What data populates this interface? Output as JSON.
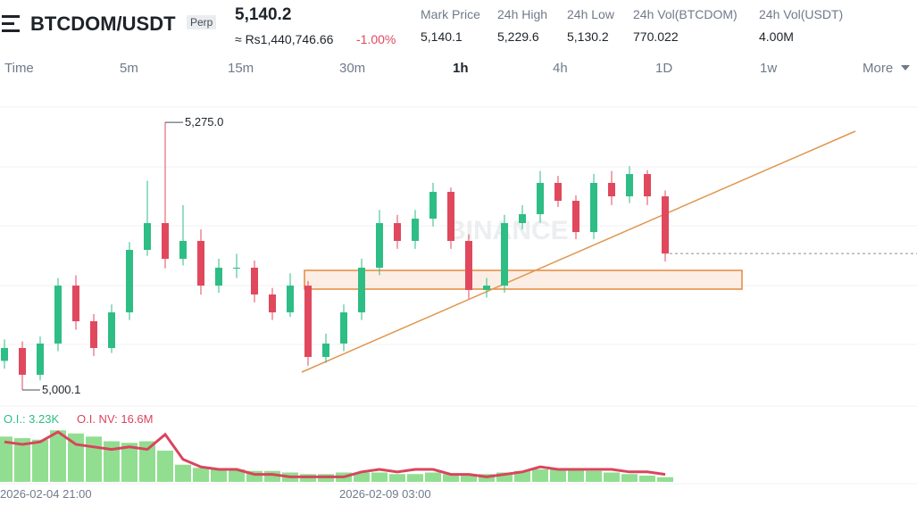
{
  "header": {
    "symbol": "BTCDOM/USDT",
    "contract": "Perp",
    "last_price": "5,140.2",
    "fiat_price": "≈ Rs1,440,746.66",
    "change": "-1.00%",
    "stats": [
      {
        "label": "Mark Price",
        "value": "5,140.1"
      },
      {
        "label": "24h High",
        "value": "5,229.6"
      },
      {
        "label": "24h Low",
        "value": "5,130.2"
      },
      {
        "label": "24h Vol(BTCDOM)",
        "value": "770.022"
      },
      {
        "label": "24h Vol(USDT)",
        "value": "4.00M"
      }
    ]
  },
  "intervals": [
    "Time",
    "5m",
    "15m",
    "30m",
    "1h",
    "4h",
    "1D",
    "1w",
    "More"
  ],
  "active_interval": 4,
  "chart_data": {
    "type": "candlestick",
    "watermark": "BINANCE",
    "colors": {
      "up": "#2ebd85",
      "down": "#e0485e"
    },
    "ylim": [
      4983.6,
      5313.6
    ],
    "open": [
      5030.0,
      5043.2,
      5015.7,
      5047.8,
      5107.3,
      5070.7,
      5043.2,
      5079.8,
      5144.0,
      5171.5,
      5134.8,
      5153.2,
      5107.3,
      5125.7,
      5125.7,
      5098.2,
      5079.8,
      5107.3,
      5034.0,
      5047.8,
      5079.8,
      5125.7,
      5171.5,
      5153.2,
      5176.1,
      5203.6,
      5153.2,
      5102.8,
      5107.3,
      5171.5,
      5180.7,
      5212.8,
      5194.4,
      5162.3,
      5212.8,
      5199.0,
      5221.9,
      5199.0
    ],
    "high": [
      5052.0,
      5050.0,
      5055.0,
      5115.0,
      5118.0,
      5078.0,
      5088.0,
      5152.0,
      5215.0,
      5275.0,
      5190.0,
      5165.0,
      5135.0,
      5140.0,
      5133.0,
      5105.0,
      5120.0,
      5112.0,
      5058.0,
      5088.0,
      5135.0,
      5185.0,
      5180.0,
      5185.0,
      5213.0,
      5208.0,
      5160.0,
      5115.0,
      5180.0,
      5190.0,
      5225.0,
      5220.0,
      5200.0,
      5222.0,
      5225.0,
      5230.0,
      5226.0,
      5205.0
    ],
    "low": [
      5022.0,
      5000.1,
      5010.0,
      5040.0,
      5062.0,
      5035.0,
      5038.0,
      5072.0,
      5138.0,
      5125.0,
      5128.0,
      5098.0,
      5100.0,
      5115.0,
      5090.0,
      5072.0,
      5075.0,
      5025.0,
      5028.0,
      5040.0,
      5072.0,
      5118.0,
      5145.0,
      5145.0,
      5168.0,
      5145.0,
      5094.0,
      5095.0,
      5100.0,
      5165.0,
      5172.0,
      5188.0,
      5155.0,
      5155.0,
      5190.0,
      5192.0,
      5190.0,
      5132.0
    ],
    "close": [
      5043.2,
      5015.7,
      5047.8,
      5107.3,
      5070.7,
      5043.2,
      5079.8,
      5144.0,
      5171.5,
      5134.8,
      5153.2,
      5107.3,
      5125.7,
      5125.7,
      5098.2,
      5079.8,
      5107.3,
      5034.0,
      5047.8,
      5079.8,
      5125.7,
      5171.5,
      5153.2,
      5176.1,
      5203.6,
      5153.2,
      5102.8,
      5107.3,
      5171.5,
      5180.7,
      5212.8,
      5194.4,
      5162.3,
      5212.8,
      5199.0,
      5221.9,
      5199.0,
      5140.2
    ],
    "high_marker": {
      "index": 9,
      "value": 5275.0,
      "label": "5,275.0"
    },
    "low_marker": {
      "index": 1,
      "value": 5000.1,
      "label": "5,000.1"
    },
    "x_labels": [
      {
        "index": 0,
        "label": "2026-02-04 21:00"
      },
      {
        "index": 19,
        "label": "2026-02-09 03:00"
      }
    ],
    "open_interest": {
      "name": "O.I.: 3.23K",
      "color": "#7ed87e",
      "ylim": [
        3.2,
        3.6
      ],
      "values": [
        3.49,
        3.48,
        3.47,
        3.53,
        3.51,
        3.49,
        3.46,
        3.45,
        3.46,
        3.4,
        3.31,
        3.29,
        3.28,
        3.28,
        3.27,
        3.27,
        3.26,
        3.25,
        3.25,
        3.26,
        3.26,
        3.26,
        3.25,
        3.25,
        3.26,
        3.25,
        3.25,
        3.25,
        3.26,
        3.27,
        3.28,
        3.28,
        3.28,
        3.27,
        3.26,
        3.25,
        3.24,
        3.23
      ]
    },
    "open_interest_nv": {
      "name": "O.I. NV: 16.6M",
      "color": "#d9455c",
      "ylim": [
        16.3,
        18.8
      ],
      "values": [
        17.9,
        17.8,
        17.9,
        18.3,
        17.8,
        17.7,
        17.6,
        17.7,
        17.6,
        18.2,
        17.2,
        16.9,
        16.8,
        16.8,
        16.6,
        16.6,
        16.5,
        16.5,
        16.5,
        16.5,
        16.7,
        16.8,
        16.7,
        16.8,
        16.8,
        16.6,
        16.6,
        16.5,
        16.6,
        16.7,
        16.9,
        16.8,
        16.8,
        16.8,
        16.8,
        16.7,
        16.7,
        16.6
      ]
    }
  }
}
